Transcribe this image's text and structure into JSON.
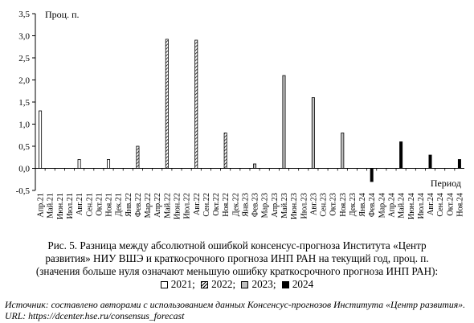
{
  "chart_data": {
    "type": "bar",
    "ylabel": "Проц. п.",
    "xlabel": "Период",
    "ylim": [
      -0.5,
      3.5
    ],
    "yticks": [
      "-0,5",
      "0,0",
      "0,5",
      "1,0",
      "1,5",
      "2,0",
      "2,5",
      "3,0",
      "3,5"
    ],
    "categories": [
      "Апр.21",
      "Май.21",
      "Июн.21",
      "Июл.21",
      "Авг.21",
      "Сен.21",
      "Окт.21",
      "Ноя.21",
      "Дек.21",
      "Янв.22",
      "Фев.22",
      "Мар.22",
      "Апр.22",
      "Май.22",
      "Июн.22",
      "Июл.22",
      "Авг.22",
      "Сен.22",
      "Окт.22",
      "Ноя.22",
      "Дек.22",
      "Янв.23",
      "Фев.23",
      "Мар.23",
      "Апр.23",
      "Май.23",
      "Июн.23",
      "Июл.23",
      "Авг.23",
      "Сен.23",
      "Окт.23",
      "Ноя.23",
      "Дек.23",
      "Янв.24",
      "Фев.24",
      "Мар.24",
      "Апр.24",
      "Май.24",
      "Июн.24",
      "Июл.24",
      "Авг.24",
      "Сен.24",
      "Окт.24",
      "Ноя.24"
    ],
    "series": [
      {
        "name": "2021",
        "fill": "#ffffff",
        "values": [
          1.3,
          0,
          0,
          0,
          0.2,
          0,
          0,
          0.2,
          0,
          null,
          null,
          null,
          null,
          null,
          null,
          null,
          null,
          null,
          null,
          null,
          null,
          null,
          null,
          null,
          null,
          null,
          null,
          null,
          null,
          null,
          null,
          null,
          null,
          null,
          null,
          null,
          null,
          null,
          null,
          null,
          null,
          null,
          null,
          null
        ]
      },
      {
        "name": "2022",
        "fill": "hatch",
        "values": [
          null,
          null,
          null,
          null,
          null,
          null,
          null,
          null,
          null,
          0,
          0.5,
          0,
          0,
          2.92,
          0,
          0,
          2.9,
          0,
          0,
          0.8,
          0,
          null,
          null,
          null,
          null,
          null,
          null,
          null,
          null,
          null,
          null,
          null,
          null,
          null,
          null,
          null,
          null,
          null,
          null,
          null,
          null,
          null,
          null,
          null
        ]
      },
      {
        "name": "2023",
        "fill": "#c0c0c0",
        "values": [
          null,
          null,
          null,
          null,
          null,
          null,
          null,
          null,
          null,
          null,
          null,
          null,
          null,
          null,
          null,
          null,
          null,
          null,
          null,
          null,
          null,
          0,
          0.1,
          0,
          0,
          2.1,
          0,
          0,
          1.6,
          0,
          0,
          0.8,
          0,
          null,
          null,
          null,
          null,
          null,
          null,
          null,
          null,
          null,
          null,
          null
        ]
      },
      {
        "name": "2024",
        "fill": "#000000",
        "values": [
          null,
          null,
          null,
          null,
          null,
          null,
          null,
          null,
          null,
          null,
          null,
          null,
          null,
          null,
          null,
          null,
          null,
          null,
          null,
          null,
          null,
          null,
          null,
          null,
          null,
          null,
          null,
          null,
          null,
          null,
          null,
          null,
          null,
          0,
          -0.3,
          0,
          0,
          0.6,
          0,
          0,
          0.3,
          0,
          0,
          0.2
        ]
      }
    ],
    "grid": false,
    "legend": "bottom"
  },
  "caption": {
    "line1": "Рис. 5. Разница между абсолютной ошибкой консенсус-прогноза Института «Центр",
    "line2": "развития» НИУ ВШЭ и краткосрочного прогноза ИНП РАН на текущий год, проц. п.",
    "line3": "(значения больше нуля означают меньшую ошибку краткосрочного прогноза ИНП РАН):"
  },
  "legend": {
    "items": [
      {
        "label": "2021;",
        "fill": "#ffffff"
      },
      {
        "label": "2022;",
        "fill": "hatch"
      },
      {
        "label": "2023;",
        "fill": "#c0c0c0"
      },
      {
        "label": "2024",
        "fill": "#000000"
      }
    ]
  },
  "source": {
    "text": "Источник: составлено авторами с использованием данных Консенсус-прогнозов Института «Центр развития». URL: https://dcenter.hse.ru/consensus_forecast"
  }
}
